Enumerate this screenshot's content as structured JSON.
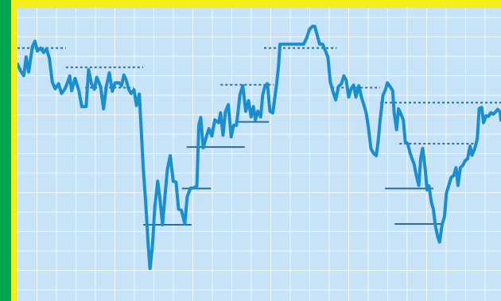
{
  "colors": {
    "outer_border": "#00a551",
    "inner_border": "#f4ef1a",
    "plot_background": "#c7e3f7",
    "gridline": "#ffffff",
    "line": "#1a8fd0",
    "level_line": "#2a6f92"
  },
  "chart_data": {
    "type": "line",
    "title": "",
    "xlabel": "",
    "ylabel": "",
    "grid": true,
    "axes_labels_visible": false,
    "legend": "none",
    "x_range": [
      0,
      100
    ],
    "y_range": [
      0,
      100
    ],
    "series": [
      {
        "values": [
          [
            0.0,
            82.1
          ],
          [
            0.6,
            79.9
          ],
          [
            1.3,
            78.0
          ],
          [
            1.8,
            84.7
          ],
          [
            2.3,
            79.3
          ],
          [
            3.1,
            88.4
          ],
          [
            3.6,
            90.3
          ],
          [
            4.1,
            86.8
          ],
          [
            4.8,
            87.9
          ],
          [
            5.4,
            86.3
          ],
          [
            6.0,
            87.7
          ],
          [
            6.6,
            84.2
          ],
          [
            7.2,
            75.6
          ],
          [
            7.8,
            73.3
          ],
          [
            8.5,
            75.1
          ],
          [
            9.1,
            71.6
          ],
          [
            9.8,
            73.2
          ],
          [
            10.4,
            75.7
          ],
          [
            10.8,
            77.9
          ],
          [
            11.2,
            72.6
          ],
          [
            11.9,
            77.0
          ],
          [
            12.7,
            72.6
          ],
          [
            13.3,
            66.9
          ],
          [
            14.2,
            66.9
          ],
          [
            14.7,
            80.1
          ],
          [
            15.3,
            75.1
          ],
          [
            15.9,
            73.1
          ],
          [
            16.4,
            77.4
          ],
          [
            17.2,
            73.9
          ],
          [
            17.8,
            66.1
          ],
          [
            18.4,
            74.4
          ],
          [
            19.0,
            79.0
          ],
          [
            19.6,
            72.4
          ],
          [
            20.2,
            75.4
          ],
          [
            21.0,
            75.4
          ],
          [
            21.5,
            74.4
          ],
          [
            22.0,
            78.2
          ],
          [
            22.5,
            76.3
          ],
          [
            23.0,
            73.1
          ],
          [
            23.5,
            71.6
          ],
          [
            24.1,
            72.9
          ],
          [
            24.6,
            67.3
          ],
          [
            25.2,
            71.4
          ],
          [
            25.6,
            58.6
          ],
          [
            26.0,
            44.9
          ],
          [
            26.5,
            32.9
          ],
          [
            27.0,
            18.0
          ],
          [
            27.4,
            8.8
          ],
          [
            27.9,
            16.5
          ],
          [
            28.4,
            31.0
          ],
          [
            29.0,
            40.1
          ],
          [
            29.4,
            34.6
          ],
          [
            30.0,
            24.5
          ],
          [
            30.5,
            34.6
          ],
          [
            31.0,
            44.4
          ],
          [
            31.6,
            49.3
          ],
          [
            32.2,
            40.1
          ],
          [
            32.8,
            39.8
          ],
          [
            33.3,
            30.1
          ],
          [
            33.9,
            29.7
          ],
          [
            34.6,
            24.8
          ],
          [
            35.1,
            34.6
          ],
          [
            35.8,
            37.7
          ],
          [
            36.4,
            37.7
          ],
          [
            37.1,
            38.4
          ],
          [
            37.5,
            60.2
          ],
          [
            37.9,
            63.0
          ],
          [
            38.4,
            52.1
          ],
          [
            39.1,
            56.3
          ],
          [
            39.6,
            59.0
          ],
          [
            40.2,
            56.3
          ],
          [
            40.8,
            62.1
          ],
          [
            41.6,
            61.1
          ],
          [
            42.0,
            64.7
          ],
          [
            42.5,
            56.6
          ],
          [
            43.0,
            64.9
          ],
          [
            43.6,
            67.6
          ],
          [
            44.2,
            56.0
          ],
          [
            44.7,
            60.2
          ],
          [
            45.3,
            60.2
          ],
          [
            46.0,
            71.1
          ],
          [
            46.6,
            74.4
          ],
          [
            47.2,
            65.2
          ],
          [
            47.8,
            69.0
          ],
          [
            48.3,
            63.2
          ],
          [
            48.8,
            66.9
          ],
          [
            49.2,
            62.1
          ],
          [
            49.7,
            65.2
          ],
          [
            50.3,
            63.2
          ],
          [
            50.7,
            70.9
          ],
          [
            51.2,
            74.4
          ],
          [
            51.7,
            75.1
          ],
          [
            52.2,
            65.2
          ],
          [
            52.8,
            64.6
          ],
          [
            53.6,
            75.1
          ],
          [
            54.0,
            81.6
          ],
          [
            54.3,
            89.3
          ],
          [
            54.8,
            89.3
          ],
          [
            55.4,
            89.3
          ],
          [
            56.1,
            89.3
          ],
          [
            57.2,
            89.3
          ],
          [
            58.3,
            89.3
          ],
          [
            59.2,
            89.3
          ],
          [
            59.8,
            91.5
          ],
          [
            60.4,
            94.6
          ],
          [
            61.0,
            95.7
          ],
          [
            61.5,
            95.7
          ],
          [
            62.0,
            92.3
          ],
          [
            62.5,
            89.3
          ],
          [
            63.1,
            89.3
          ],
          [
            63.7,
            86.8
          ],
          [
            64.2,
            84.7
          ],
          [
            64.7,
            75.6
          ],
          [
            65.2,
            72.6
          ],
          [
            65.8,
            69.3
          ],
          [
            66.4,
            74.1
          ],
          [
            67.0,
            75.1
          ],
          [
            67.5,
            77.9
          ],
          [
            68.0,
            76.3
          ],
          [
            68.5,
            70.3
          ],
          [
            69.0,
            73.3
          ],
          [
            69.5,
            74.6
          ],
          [
            70.0,
            70.3
          ],
          [
            70.6,
            74.4
          ],
          [
            71.2,
            69.9
          ],
          [
            71.8,
            66.6
          ],
          [
            72.1,
            64.7
          ],
          [
            72.6,
            59.1
          ],
          [
            73.1,
            51.9
          ],
          [
            73.6,
            50.2
          ],
          [
            74.2,
            49.3
          ],
          [
            74.6,
            54.6
          ],
          [
            75.0,
            62.1
          ],
          [
            75.6,
            70.9
          ],
          [
            76.1,
            72.9
          ],
          [
            76.5,
            75.4
          ],
          [
            77.0,
            74.2
          ],
          [
            77.6,
            72.6
          ],
          [
            77.9,
            64.7
          ],
          [
            78.4,
            58.6
          ],
          [
            78.8,
            66.1
          ],
          [
            79.2,
            64.7
          ],
          [
            79.8,
            62.0
          ],
          [
            80.2,
            54.3
          ],
          [
            80.7,
            53.6
          ],
          [
            81.2,
            50.2
          ],
          [
            81.6,
            48.2
          ],
          [
            82.0,
            46.4
          ],
          [
            82.5,
            42.1
          ],
          [
            83.0,
            38.6
          ],
          [
            83.4,
            48.5
          ],
          [
            83.8,
            51.9
          ],
          [
            84.3,
            45.0
          ],
          [
            84.7,
            37.0
          ],
          [
            85.1,
            38.5
          ],
          [
            85.6,
            32.6
          ],
          [
            86.0,
            30.2
          ],
          [
            86.4,
            24.5
          ],
          [
            86.9,
            20.2
          ],
          [
            87.3,
            18.3
          ],
          [
            87.8,
            24.5
          ],
          [
            88.3,
            27.4
          ],
          [
            88.7,
            35.7
          ],
          [
            89.2,
            38.6
          ],
          [
            89.7,
            41.5
          ],
          [
            90.2,
            42.1
          ],
          [
            90.7,
            45.0
          ],
          [
            91.1,
            38.6
          ],
          [
            91.6,
            45.0
          ],
          [
            92.1,
            45.8
          ],
          [
            92.6,
            47.5
          ],
          [
            93.1,
            48.2
          ],
          [
            93.6,
            52.7
          ],
          [
            94.0,
            49.4
          ],
          [
            94.6,
            52.0
          ],
          [
            95.1,
            55.4
          ],
          [
            95.5,
            66.2
          ],
          [
            96.0,
            66.6
          ],
          [
            96.4,
            61.1
          ],
          [
            96.9,
            63.6
          ],
          [
            97.4,
            63.4
          ],
          [
            97.9,
            64.7
          ],
          [
            98.4,
            64.2
          ],
          [
            98.9,
            65.0
          ],
          [
            99.3,
            65.9
          ],
          [
            99.8,
            65.0
          ],
          [
            100.0,
            62.0
          ]
        ]
      }
    ],
    "reference_lines": [
      {
        "style": "dotted",
        "x": [
          0,
          10
        ],
        "y": 87.9
      },
      {
        "style": "dotted",
        "x": [
          10,
          26
        ],
        "y": 81.0
      },
      {
        "style": "dotted",
        "x": [
          14,
          24
        ],
        "y": 73.7
      },
      {
        "style": "dotted",
        "x": [
          42,
          53
        ],
        "y": 74.7
      },
      {
        "style": "dotted",
        "x": [
          51,
          66
        ],
        "y": 87.9
      },
      {
        "style": "dotted",
        "x": [
          65,
          75
        ],
        "y": 73.7
      },
      {
        "style": "dotted",
        "x": [
          75,
          100
        ],
        "y": 68.3
      },
      {
        "style": "dotted",
        "x": [
          79,
          95
        ],
        "y": 53.6
      },
      {
        "style": "solid",
        "x": [
          45,
          52
        ],
        "y": 61.4
      },
      {
        "style": "solid",
        "x": [
          35,
          47
        ],
        "y": 52.4
      },
      {
        "style": "solid",
        "x": [
          34,
          40
        ],
        "y": 37.5
      },
      {
        "style": "solid",
        "x": [
          26,
          36
        ],
        "y": 24.5
      },
      {
        "style": "solid",
        "x": [
          76,
          86
        ],
        "y": 37.5
      },
      {
        "style": "solid",
        "x": [
          78,
          88
        ],
        "y": 24.8
      }
    ]
  }
}
